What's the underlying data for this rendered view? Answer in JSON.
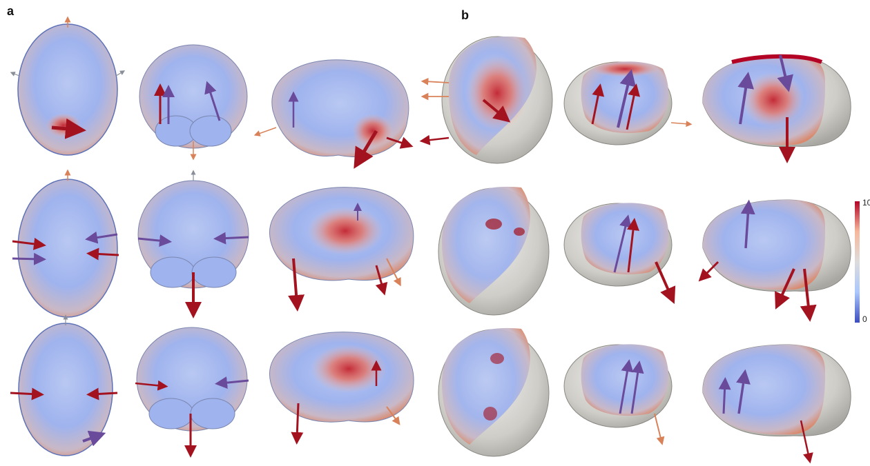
{
  "panels": [
    {
      "label": "a"
    },
    {
      "label": "b"
    }
  ],
  "colorbar": {
    "max_label": "10",
    "min_label": "0",
    "colors": [
      "#3b4cc0",
      "#aac7fd",
      "#dddcdc",
      "#f7b89c",
      "#b40426"
    ]
  },
  "figure": {
    "rows": 3,
    "columns_per_panel": 3,
    "panel_a_views": [
      "axial",
      "coronal",
      "sagittal"
    ],
    "panel_b_views": [
      "skull-cutaway",
      "coronal",
      "sagittal"
    ]
  }
}
